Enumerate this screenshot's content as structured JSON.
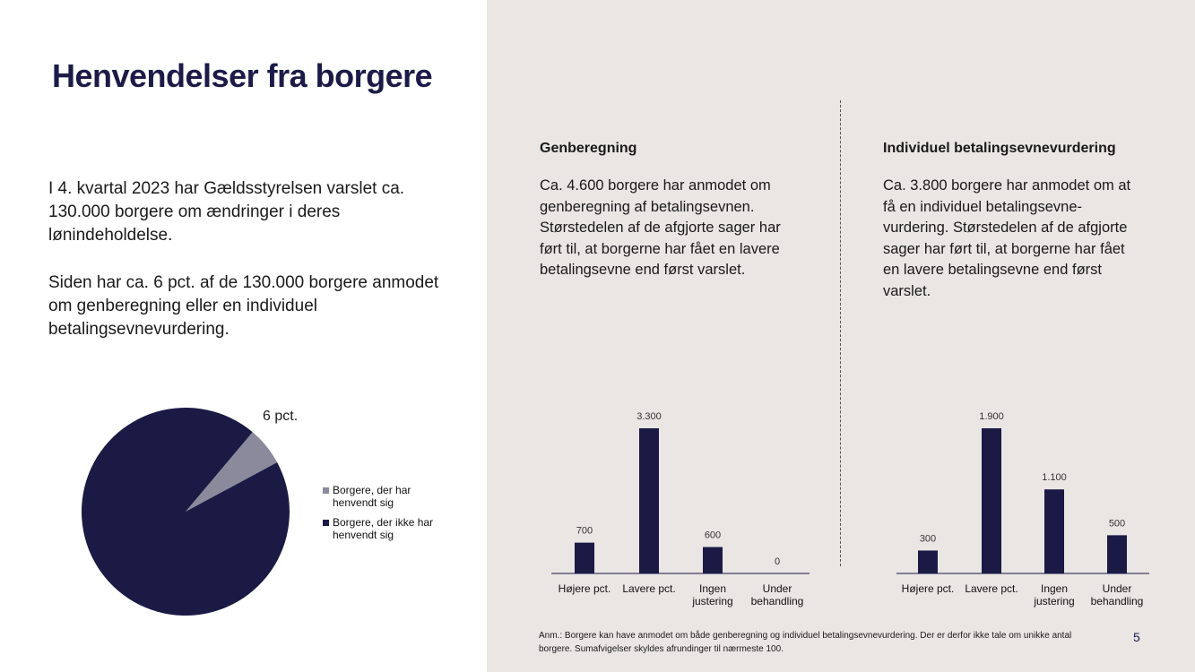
{
  "title": "Henvendelser fra borgere",
  "intro": {
    "paragraph1": "I 4. kvartal 2023 har Gældsstyrelsen varslet ca. 130.000 borgere om ændringer i deres lønindeholdelse.",
    "paragraph2": "Siden har ca. 6 pct. af de 130.000 borgere anmodet om genberegning eller en individuel betalingsevnevurdering."
  },
  "sections": {
    "left": {
      "title": "Genberegning",
      "body": "Ca. 4.600 borgere har anmodet om genberegning af betalingsevnen. Størstedelen af de afgjorte sager har ført til, at borgerne har fået en lavere betalingsevne end først varslet."
    },
    "right": {
      "title": "Individuel betalingsevnevurdering",
      "body": "Ca. 3.800 borgere har anmodet om at få en individuel betalingsevne-vurdering. Størstedelen af de afgjorte sager har ført til, at borgerne har fået en lavere betalingsevne end først varslet."
    }
  },
  "note": "Anm.: Borgere kan have anmodet om både genberegning og individuel betalingsevnevurdering. Der er derfor ikke tale om unikke antal borgere. Sumafvigelser skyldes afrundinger til nærmeste 100.",
  "page_number": "5",
  "colors": {
    "navy": "#1a1a45",
    "grey_slice": "#8a8a9c",
    "title": "#1c1b48",
    "panel_bg": "#e9e6e4"
  },
  "chart_data": [
    {
      "type": "pie",
      "slice_label": "6 pct.",
      "slices": [
        {
          "label": "Borgere, der har henvendt sig",
          "value": 6,
          "color": "#8a8a9c"
        },
        {
          "label": "Borgere, der ikke har henvendt sig",
          "value": 94,
          "color": "#1a1a45"
        }
      ]
    },
    {
      "type": "bar",
      "categories": [
        [
          "Højere pct."
        ],
        [
          "Lavere pct."
        ],
        [
          "Ingen",
          "justering"
        ],
        [
          "Under",
          "behandling"
        ]
      ],
      "values": [
        700,
        3300,
        600,
        0
      ],
      "value_labels": [
        "700",
        "3.300",
        "600",
        "0"
      ],
      "ylim": [
        0,
        3300
      ]
    },
    {
      "type": "bar",
      "categories": [
        [
          "Højere pct."
        ],
        [
          "Lavere pct."
        ],
        [
          "Ingen",
          "justering"
        ],
        [
          "Under",
          "behandling"
        ]
      ],
      "values": [
        300,
        1900,
        1100,
        500
      ],
      "value_labels": [
        "300",
        "1.900",
        "1.100",
        "500"
      ],
      "ylim": [
        0,
        1900
      ]
    }
  ]
}
